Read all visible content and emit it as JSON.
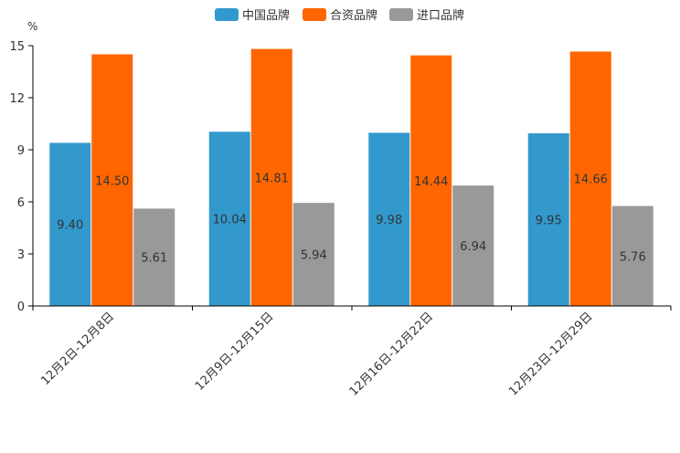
{
  "chart_data": {
    "type": "bar",
    "title": "",
    "ylabel": "%",
    "xlabel": "",
    "ylim": [
      0,
      15
    ],
    "yticks": [
      "0",
      "3",
      "6",
      "9",
      "12",
      "15"
    ],
    "categories": [
      "12月2日-12月8日",
      "12月9日-12月15日",
      "12月16日-12月22日",
      "12月23日-12月29日"
    ],
    "series": [
      {
        "name": "中国品牌",
        "color": "#3399cc",
        "values": [
          9.4,
          10.04,
          9.98,
          9.95
        ],
        "labels": [
          "9.40",
          "10.04",
          "9.98",
          "9.95"
        ]
      },
      {
        "name": "合资品牌",
        "color": "#ff6600",
        "values": [
          14.5,
          14.81,
          14.44,
          14.66
        ],
        "labels": [
          "14.50",
          "14.81",
          "14.44",
          "14.66"
        ]
      },
      {
        "name": "进口品牌",
        "color": "#999999",
        "values": [
          5.61,
          5.94,
          6.94,
          5.76
        ],
        "labels": [
          "5.61",
          "5.94",
          "6.94",
          "5.76"
        ]
      }
    ],
    "legend_position": "top-center",
    "grid": false
  }
}
